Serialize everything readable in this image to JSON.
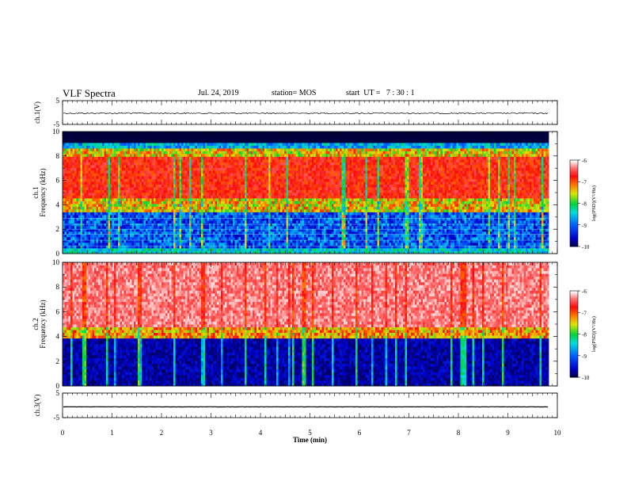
{
  "header": {
    "title": "VLF Spectra",
    "date": "Jul. 24, 2019",
    "station": "station= MOS",
    "start": "start  UT =   7 : 30 : 1"
  },
  "chart_data": [
    {
      "type": "line",
      "ylabel": "ch.1(V)",
      "ylim": [
        -5,
        5
      ],
      "yticks": [
        "5",
        "-5"
      ],
      "series": [
        {
          "values_note_free": true,
          "values": [
            -0.3
          ]
        }
      ]
    },
    {
      "type": "heatmap",
      "ylabel_top": "ch.1",
      "ylabel": "Frequency (kHz)",
      "ylim": [
        0,
        10
      ],
      "yticks": [
        "0",
        "2",
        "4",
        "6",
        "8",
        "10"
      ],
      "colorbar": {
        "label": "log(PSD)(V²/Hz)",
        "ticks": [
          "-6",
          "-7",
          "-8",
          "-9",
          "-10"
        ],
        "range": [
          -10,
          -6
        ]
      }
    },
    {
      "type": "heatmap",
      "ylabel_top": "ch.2",
      "ylabel": "Frequency (kHz)",
      "ylim": [
        0,
        10
      ],
      "yticks": [
        "0",
        "2",
        "4",
        "6",
        "8",
        "10"
      ],
      "colorbar": {
        "label": "log(PSD)(V²/Hz)",
        "ticks": [
          "-6",
          "-7",
          "-8",
          "-9",
          "-10"
        ],
        "range": [
          -10,
          -6
        ]
      }
    },
    {
      "type": "line",
      "ylabel": "ch.3(V)",
      "ylim": [
        -5,
        5
      ],
      "yticks": [
        "5",
        "-5"
      ],
      "series": [
        {
          "values": [
            -0.6
          ]
        }
      ]
    }
  ],
  "xaxis": {
    "label": "Time (min)",
    "xlim": [
      0,
      10
    ],
    "ticks": [
      "0",
      "1",
      "2",
      "3",
      "4",
      "5",
      "6",
      "7",
      "8",
      "9",
      "10"
    ]
  }
}
